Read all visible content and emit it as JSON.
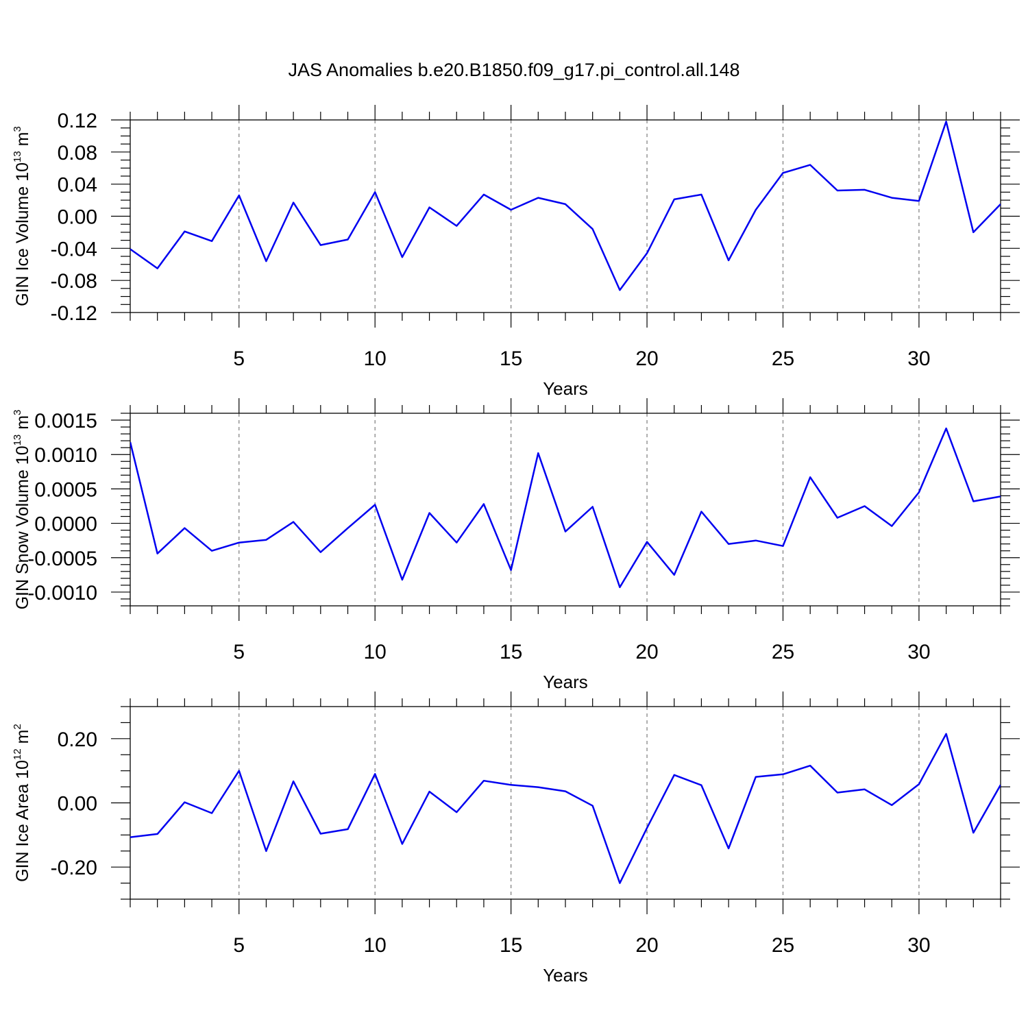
{
  "title": "JAS Anomalies b.e20.B1850.f09_g17.pi_control.all.148",
  "chart_data": [
    {
      "type": "line",
      "ylabel_main": "GIN Ice Volume 10",
      "ylabel_exp": "13",
      "ylabel_unit": " m",
      "ylabel_unit_exp": "3",
      "xlabel": "Years",
      "xlim": [
        1,
        33
      ],
      "ylim": [
        -0.12,
        0.12
      ],
      "yticks": [
        -0.12,
        -0.08,
        -0.04,
        0.0,
        0.04,
        0.08,
        0.12
      ],
      "ytick_labels": [
        "-0.12",
        "-0.08",
        "-0.04",
        "0.00",
        "0.04",
        "0.08",
        "0.12"
      ],
      "yminor_step": 0.01,
      "xticks": [
        5,
        10,
        15,
        20,
        25,
        30
      ],
      "xtick_labels": [
        "5",
        "10",
        "15",
        "20",
        "25",
        "30"
      ],
      "grid": "vertical-dashed",
      "color": "#0000f0",
      "x": [
        1,
        2,
        3,
        4,
        5,
        6,
        7,
        8,
        9,
        10,
        11,
        12,
        13,
        14,
        15,
        16,
        17,
        18,
        19,
        20,
        21,
        22,
        23,
        24,
        25,
        26,
        27,
        28,
        29,
        30,
        31,
        32,
        33
      ],
      "values": [
        -0.041,
        -0.065,
        -0.019,
        -0.031,
        0.026,
        -0.056,
        0.017,
        -0.036,
        -0.029,
        0.03,
        -0.051,
        0.011,
        -0.012,
        0.027,
        0.008,
        0.023,
        0.015,
        -0.016,
        -0.092,
        -0.046,
        0.021,
        0.027,
        -0.055,
        0.008,
        0.054,
        0.064,
        0.032,
        0.033,
        0.023,
        0.019,
        0.118,
        -0.02,
        0.015
      ]
    },
    {
      "type": "line",
      "ylabel_main": "GIN Snow Volume 10",
      "ylabel_exp": "13",
      "ylabel_unit": " m",
      "ylabel_unit_exp": "3",
      "xlabel": "Years",
      "xlim": [
        1,
        33
      ],
      "ylim": [
        -0.0012,
        0.0016
      ],
      "yticks": [
        -0.001,
        -0.0005,
        0.0,
        0.0005,
        0.001,
        0.0015
      ],
      "ytick_labels": [
        "-0.0010",
        "-0.0005",
        "0.0000",
        "0.0005",
        "0.0010",
        "0.0015"
      ],
      "yminor_step": 0.0001,
      "xticks": [
        5,
        10,
        15,
        20,
        25,
        30
      ],
      "xtick_labels": [
        "5",
        "10",
        "15",
        "20",
        "25",
        "30"
      ],
      "grid": "vertical-dashed",
      "color": "#0000f0",
      "x": [
        1,
        2,
        3,
        4,
        5,
        6,
        7,
        8,
        9,
        10,
        11,
        12,
        13,
        14,
        15,
        16,
        17,
        18,
        19,
        20,
        21,
        22,
        23,
        24,
        25,
        26,
        27,
        28,
        29,
        30,
        31,
        32,
        33
      ],
      "values": [
        0.00118,
        -0.00044,
        -7e-05,
        -0.0004,
        -0.00028,
        -0.00024,
        2e-05,
        -0.00042,
        -7e-05,
        0.00027,
        -0.00082,
        0.00015,
        -0.00028,
        0.00028,
        -0.00068,
        0.00102,
        -0.00012,
        0.00024,
        -0.00093,
        -0.00027,
        -0.00075,
        0.00017,
        -0.0003,
        -0.00025,
        -0.00033,
        0.00067,
        8e-05,
        0.00025,
        -4e-05,
        0.00045,
        0.00138,
        0.00032,
        0.00039
      ]
    },
    {
      "type": "line",
      "ylabel_main": "GIN Ice Area 10",
      "ylabel_exp": "12",
      "ylabel_unit": " m",
      "ylabel_unit_exp": "2",
      "xlabel": "Years",
      "xlim": [
        1,
        33
      ],
      "ylim": [
        -0.3,
        0.3
      ],
      "yticks": [
        -0.2,
        0.0,
        0.2
      ],
      "ytick_labels": [
        "-0.20",
        "0.00",
        "0.20"
      ],
      "yminor_step": 0.05,
      "xticks": [
        5,
        10,
        15,
        20,
        25,
        30
      ],
      "xtick_labels": [
        "5",
        "10",
        "15",
        "20",
        "25",
        "30"
      ],
      "grid": "vertical-dashed",
      "color": "#0000f0",
      "x": [
        1,
        2,
        3,
        4,
        5,
        6,
        7,
        8,
        9,
        10,
        11,
        12,
        13,
        14,
        15,
        16,
        17,
        18,
        19,
        20,
        21,
        22,
        23,
        24,
        25,
        26,
        27,
        28,
        29,
        30,
        31,
        32,
        33
      ],
      "values": [
        -0.107,
        -0.097,
        0.002,
        -0.032,
        0.1,
        -0.15,
        0.067,
        -0.096,
        -0.082,
        0.09,
        -0.128,
        0.035,
        -0.029,
        0.069,
        0.056,
        0.049,
        0.036,
        -0.009,
        -0.25,
        -0.078,
        0.087,
        0.055,
        -0.142,
        0.081,
        0.089,
        0.116,
        0.032,
        0.042,
        -0.007,
        0.058,
        0.215,
        -0.093,
        0.056
      ]
    }
  ]
}
